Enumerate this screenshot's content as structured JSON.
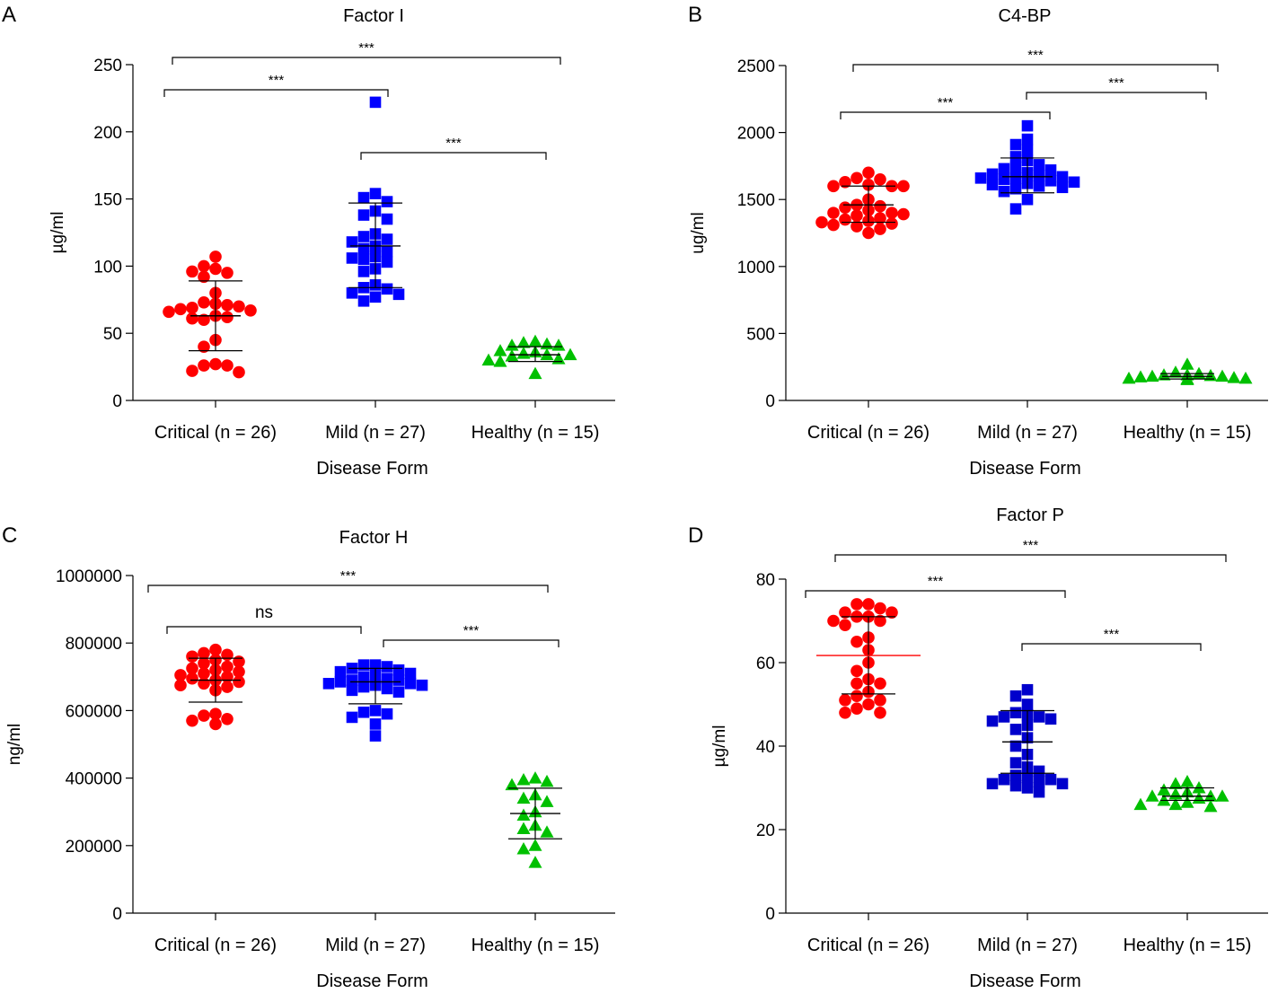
{
  "figure": {
    "panels": [
      "A",
      "B",
      "C",
      "D"
    ]
  },
  "chart_data": [
    {
      "panel": "A",
      "type": "scatter",
      "title": "Factor I",
      "xlabel": "Disease Form",
      "ylabel": "µg/ml",
      "ylim": [
        0,
        250
      ],
      "yticks": [
        0,
        50,
        100,
        150,
        200,
        250
      ],
      "ytick_labels": [
        "0",
        "50",
        "100",
        "150",
        "200",
        "250"
      ],
      "categories": [
        "Critical (n = 26)",
        "Mild (n = 27)",
        "Healthy (n = 15)"
      ],
      "series": [
        {
          "name": "Critical (n = 26)",
          "marker": "circle",
          "color": "#ff0000",
          "center": 63,
          "lower": 37,
          "upper": 89,
          "values": [
            107,
            98,
            100,
            95,
            96,
            92,
            80,
            72,
            73,
            71,
            69,
            70,
            68,
            67,
            66,
            63,
            60,
            62,
            61,
            45,
            40,
            27,
            26,
            26,
            22,
            21
          ]
        },
        {
          "name": "Mild (n = 27)",
          "marker": "square",
          "color": "#0000ff",
          "center": 115,
          "lower": 84,
          "upper": 147,
          "values": [
            222,
            154,
            151,
            148,
            141,
            138,
            135,
            124,
            122,
            120,
            118,
            115,
            113,
            111,
            107,
            106,
            105,
            103,
            98,
            96,
            86,
            84,
            83,
            80,
            79,
            77,
            74
          ]
        },
        {
          "name": "Healthy (n = 15)",
          "marker": "triangle",
          "color": "#00c000",
          "center": 34,
          "lower": 29,
          "upper": 40,
          "values": [
            44,
            43,
            42,
            41,
            41,
            37,
            36,
            35,
            34,
            34,
            33,
            31,
            30,
            29,
            20
          ]
        }
      ],
      "comparisons": [
        {
          "from": 0,
          "to": 2,
          "label": "***"
        },
        {
          "from": 0,
          "to": 1,
          "label": "***"
        },
        {
          "from": 1,
          "to": 2,
          "label": "***"
        }
      ]
    },
    {
      "panel": "B",
      "type": "scatter",
      "title": "C4-BP",
      "xlabel": "Disease Form",
      "ylabel": "ug/ml",
      "ylim": [
        0,
        2500
      ],
      "yticks": [
        0,
        500,
        1000,
        1500,
        2000,
        2500
      ],
      "ytick_labels": [
        "0",
        "500",
        "1000",
        "1500",
        "2000",
        "2500"
      ],
      "categories": [
        "Critical (n = 26)",
        "Mild (n = 27)",
        "Healthy (n = 15)"
      ],
      "series": [
        {
          "name": "Critical (n = 26)",
          "marker": "circle",
          "color": "#ff0000",
          "center": 1460,
          "lower": 1330,
          "upper": 1600,
          "values": [
            1700,
            1660,
            1650,
            1630,
            1610,
            1600,
            1600,
            1600,
            1500,
            1460,
            1450,
            1440,
            1420,
            1400,
            1400,
            1390,
            1380,
            1360,
            1350,
            1340,
            1330,
            1320,
            1310,
            1300,
            1280,
            1250
          ]
        },
        {
          "name": "Mild (n = 27)",
          "marker": "square",
          "color": "#0000ff",
          "center": 1670,
          "lower": 1550,
          "upper": 1810,
          "values": [
            2050,
            1950,
            1910,
            1870,
            1820,
            1790,
            1760,
            1740,
            1730,
            1720,
            1700,
            1690,
            1680,
            1670,
            1660,
            1660,
            1650,
            1640,
            1630,
            1620,
            1610,
            1600,
            1590,
            1580,
            1560,
            1500,
            1430
          ]
        },
        {
          "name": "Healthy (n = 15)",
          "marker": "triangle",
          "color": "#00c000",
          "center": 180,
          "lower": 160,
          "upper": 200,
          "values": [
            270,
            210,
            200,
            190,
            190,
            185,
            180,
            180,
            175,
            170,
            165,
            165,
            160,
            160,
            155
          ]
        }
      ],
      "comparisons": [
        {
          "from": 0,
          "to": 2,
          "label": "***"
        },
        {
          "from": 1,
          "to": 2,
          "label": "***"
        },
        {
          "from": 0,
          "to": 1,
          "label": "***"
        }
      ]
    },
    {
      "panel": "C",
      "type": "scatter",
      "title": "Factor H",
      "xlabel": "Disease Form",
      "ylabel": "ng/ml",
      "ylim": [
        0,
        1000000
      ],
      "yticks": [
        0,
        200000,
        400000,
        600000,
        800000,
        1000000
      ],
      "ytick_labels": [
        "0",
        "200000",
        "400000",
        "600000",
        "800000",
        "1000000"
      ],
      "categories": [
        "Critical (n = 26)",
        "Mild (n = 27)",
        "Healthy (n = 15)"
      ],
      "series": [
        {
          "name": "Critical (n = 26)",
          "marker": "circle",
          "color": "#ff0000",
          "center": 690000,
          "lower": 625000,
          "upper": 755000,
          "values": [
            780000,
            770000,
            765000,
            760000,
            750000,
            745000,
            740000,
            730000,
            725000,
            720000,
            715000,
            710000,
            705000,
            700000,
            695000,
            690000,
            685000,
            680000,
            675000,
            670000,
            660000,
            590000,
            585000,
            575000,
            570000,
            560000
          ]
        },
        {
          "name": "Mild (n = 27)",
          "marker": "square",
          "color": "#0000ff",
          "center": 685000,
          "lower": 620000,
          "upper": 725000,
          "values": [
            735000,
            735000,
            730000,
            725000,
            720000,
            715000,
            710000,
            705000,
            700000,
            695000,
            690000,
            690000,
            685000,
            680000,
            680000,
            675000,
            675000,
            670000,
            665000,
            660000,
            655000,
            600000,
            595000,
            590000,
            580000,
            560000,
            525000
          ]
        },
        {
          "name": "Healthy (n = 15)",
          "marker": "triangle",
          "color": "#00c000",
          "center": 295000,
          "lower": 220000,
          "upper": 370000,
          "values": [
            400000,
            395000,
            390000,
            380000,
            350000,
            340000,
            330000,
            300000,
            290000,
            260000,
            250000,
            240000,
            200000,
            190000,
            150000
          ]
        }
      ],
      "comparisons": [
        {
          "from": 0,
          "to": 2,
          "label": "***"
        },
        {
          "from": 0,
          "to": 1,
          "label": "ns"
        },
        {
          "from": 1,
          "to": 2,
          "label": "***"
        }
      ]
    },
    {
      "panel": "D",
      "type": "scatter",
      "title": "Factor P",
      "xlabel": "Disease Form",
      "ylabel": "µg/ml",
      "ylim": [
        0,
        80
      ],
      "yticks": [
        0,
        20,
        40,
        60,
        80
      ],
      "ytick_labels": [
        "0",
        "20",
        "40",
        "60",
        "80"
      ],
      "categories": [
        "Critical (n = 26)",
        "Mild (n = 27)",
        "Healthy (n = 15)"
      ],
      "series": [
        {
          "name": "Critical (n = 26)",
          "marker": "circle",
          "color": "#ff0000",
          "center": 61.7,
          "lower": 52.5,
          "upper": 71,
          "center_color": "#ff0000",
          "values": [
            74,
            74,
            73,
            72,
            72,
            71,
            71,
            70,
            70,
            69,
            66,
            65,
            63,
            60,
            58,
            56,
            55,
            55,
            53,
            52,
            51,
            51,
            50,
            49,
            48,
            48
          ]
        },
        {
          "name": "Mild (n = 27)",
          "marker": "square",
          "color": "#0000cc",
          "center": 41,
          "lower": 33.5,
          "upper": 48.5,
          "values": [
            53.5,
            52,
            50,
            48,
            47.5,
            47,
            47,
            46.5,
            46,
            45,
            44,
            42,
            40,
            38,
            36,
            35,
            34,
            33,
            32.5,
            32,
            32,
            31.5,
            31,
            31,
            30.5,
            30,
            29
          ]
        },
        {
          "name": "Healthy (n = 15)",
          "marker": "triangle",
          "color": "#00c000",
          "center": 28,
          "lower": 27,
          "upper": 30,
          "values": [
            31.5,
            31,
            30,
            29.5,
            29,
            28.5,
            28,
            28,
            28,
            27.5,
            27,
            26.5,
            26,
            26,
            25.5
          ]
        }
      ],
      "comparisons": [
        {
          "from": 0,
          "to": 2,
          "label": "***"
        },
        {
          "from": 0,
          "to": 1,
          "label": "***"
        },
        {
          "from": 1,
          "to": 2,
          "label": "***"
        }
      ]
    }
  ]
}
